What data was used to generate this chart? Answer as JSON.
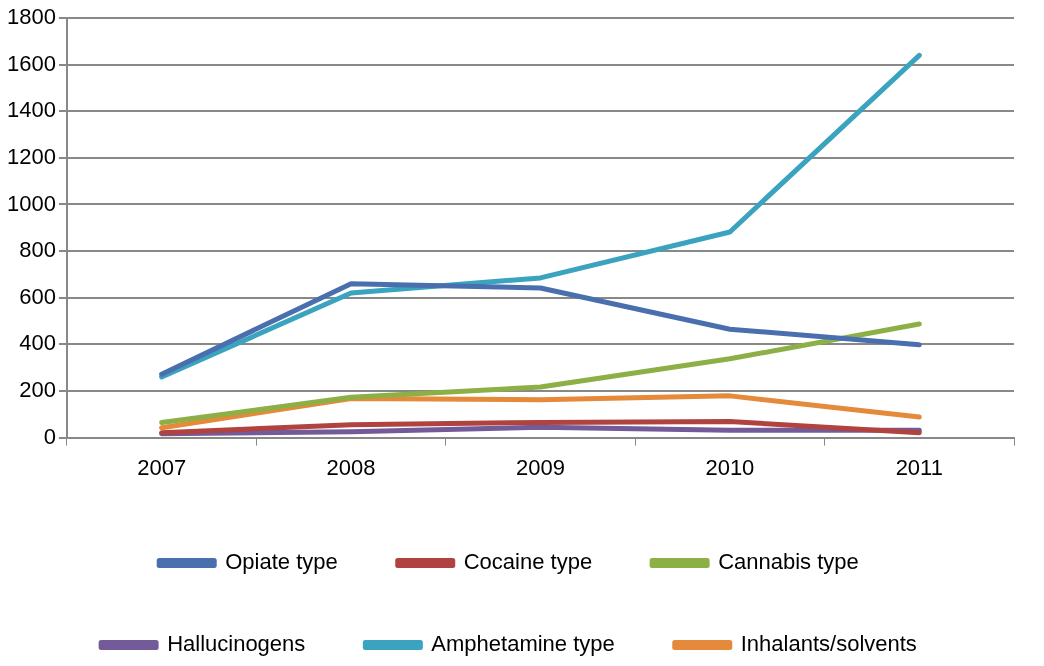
{
  "chart_data": {
    "type": "line",
    "categories": [
      "2007",
      "2008",
      "2009",
      "2010",
      "2011"
    ],
    "series": [
      {
        "name": "Opiate type",
        "color": "#4a6fae",
        "values": [
          272,
          660,
          642,
          465,
          398
        ]
      },
      {
        "name": "Cocaine type",
        "color": "#b0433f",
        "values": [
          21,
          55,
          65,
          69,
          21
        ]
      },
      {
        "name": "Cannabis type",
        "color": "#8cb045",
        "values": [
          65,
          173,
          217,
          338,
          487
        ]
      },
      {
        "name": "Hallucinogens",
        "color": "#735a99",
        "values": [
          17,
          25,
          44,
          32,
          32
        ]
      },
      {
        "name": "Amphetamine type",
        "color": "#3aa3bf",
        "values": [
          260,
          620,
          685,
          882,
          1640
        ]
      },
      {
        "name": "Inhalants/solvents",
        "color": "#e5893a",
        "values": [
          42,
          168,
          162,
          179,
          88
        ]
      }
    ],
    "ylim": [
      0,
      1800
    ],
    "yticks": [
      0,
      200,
      400,
      600,
      800,
      1000,
      1200,
      1400,
      1600,
      1800
    ],
    "grid": "y",
    "legend": "bottom",
    "marker": "none",
    "line_style": "solid"
  }
}
